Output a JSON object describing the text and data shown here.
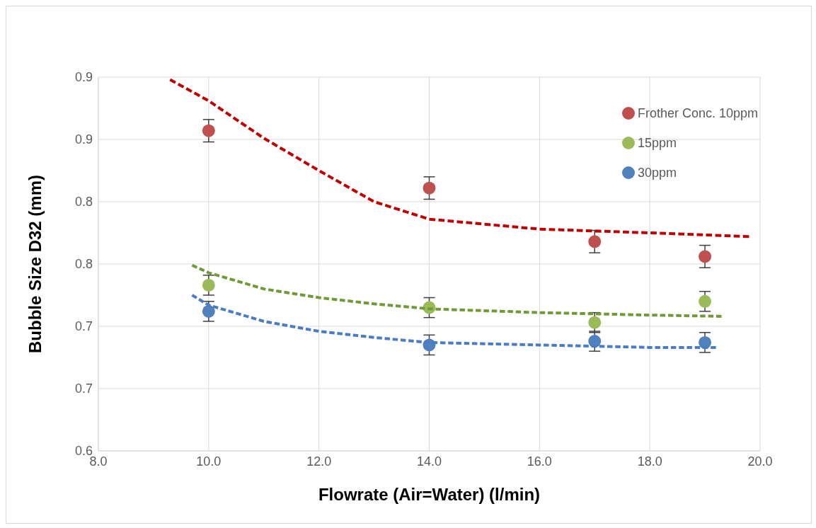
{
  "chart_data": {
    "type": "scatter",
    "xlabel": "Flowrate (Air=Water) (l/min)",
    "ylabel": "Bubble Size D32 (mm)",
    "xlim": [
      8,
      20
    ],
    "xticks": [
      {
        "value": 8,
        "label": "8.0"
      },
      {
        "value": 10,
        "label": "10.0"
      },
      {
        "value": 12,
        "label": "12.0"
      },
      {
        "value": 14,
        "label": "14.0"
      },
      {
        "value": 16,
        "label": "16.0"
      },
      {
        "value": 18,
        "label": "18.0"
      },
      {
        "value": 20,
        "label": "20.0"
      }
    ],
    "ylim": [
      0.6,
      0.9
    ],
    "yticks": [
      {
        "value": 0.6,
        "label": "0.6"
      },
      {
        "value": 0.65,
        "label": "0.7"
      },
      {
        "value": 0.7,
        "label": "0.7"
      },
      {
        "value": 0.75,
        "label": "0.8"
      },
      {
        "value": 0.8,
        "label": "0.8"
      },
      {
        "value": 0.85,
        "label": "0.9"
      },
      {
        "value": 0.9,
        "label": "0.9"
      }
    ],
    "grid": true,
    "legend": "top right",
    "marker": "circle",
    "series": [
      {
        "name": "Frother Conc. 10ppm",
        "color": "#c0504d",
        "x": [
          10,
          14,
          17,
          19
        ],
        "values": [
          0.857,
          0.811,
          0.768,
          0.756
        ],
        "errors": [
          0.009,
          0.009,
          0.009,
          0.009
        ]
      },
      {
        "name": "15ppm",
        "color": "#9bbb59",
        "x": [
          10,
          14,
          17,
          19
        ],
        "values": [
          0.733,
          0.715,
          0.703,
          0.72
        ],
        "errors": [
          0.008,
          0.008,
          0.008,
          0.008
        ]
      },
      {
        "name": "30ppm",
        "color": "#4f81bd",
        "x": [
          10,
          14,
          17,
          19
        ],
        "values": [
          0.712,
          0.685,
          0.688,
          0.687
        ],
        "errors": [
          0.008,
          0.008,
          0.008,
          0.008
        ]
      },
      {
        "type": "line",
        "line_style": "dashed",
        "marker": "none",
        "color": "#c00000",
        "x": [
          9.3,
          10,
          11,
          12,
          13,
          14,
          15,
          16,
          18,
          19.8
        ],
        "values": [
          0.898,
          0.881,
          0.851,
          0.825,
          0.8,
          0.786,
          0.782,
          0.778,
          0.775,
          0.772
        ]
      },
      {
        "type": "line",
        "line_style": "dashed",
        "marker": "none",
        "color": "#6f9a35",
        "x": [
          9.7,
          10,
          11,
          12,
          13,
          14,
          16,
          18,
          19.3
        ],
        "values": [
          0.749,
          0.743,
          0.73,
          0.723,
          0.718,
          0.714,
          0.711,
          0.709,
          0.708
        ]
      },
      {
        "type": "line",
        "line_style": "dashed",
        "marker": "none",
        "color": "#4a7cc6",
        "x": [
          9.7,
          10,
          11,
          12,
          13,
          14,
          16,
          18,
          19.2
        ],
        "values": [
          0.725,
          0.717,
          0.704,
          0.696,
          0.691,
          0.687,
          0.685,
          0.683,
          0.683
        ]
      }
    ]
  }
}
